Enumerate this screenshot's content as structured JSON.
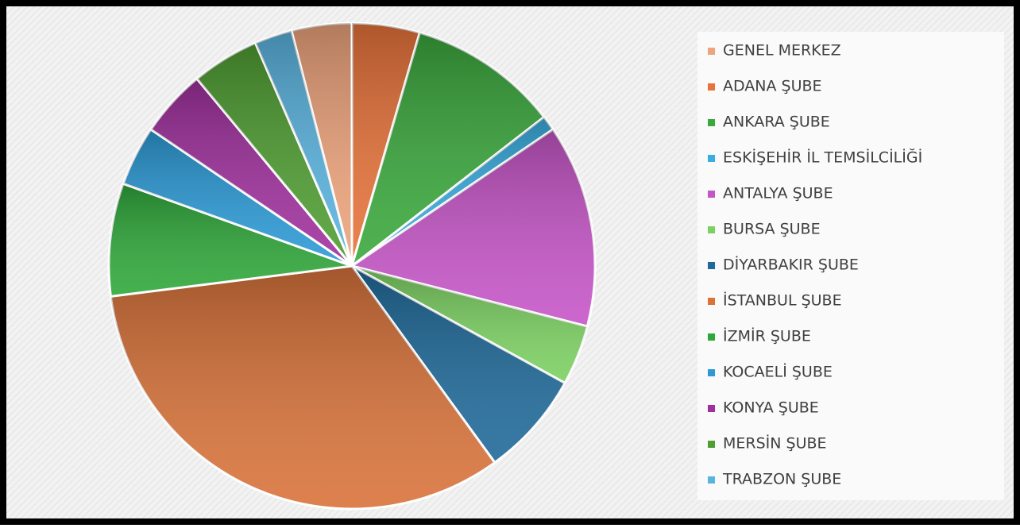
{
  "chart_data": {
    "type": "pie",
    "start_angle": -14.4,
    "categories": [
      "GENEL MERKEZ",
      "ADANA ŞUBE",
      "ANKARA ŞUBE",
      "ESKİŞEHİR İL TEMSİLCİLİĞİ",
      "ANTALYA ŞUBE",
      "BURSA ŞUBE",
      "DİYARBAKIR ŞUBE",
      "İSTANBUL ŞUBE",
      "İZMİR ŞUBE",
      "KOCAELİ ŞUBE",
      "KONYA ŞUBE",
      "MERSİN ŞUBE",
      "TRABZON ŞUBE"
    ],
    "values": [
      4,
      4.5,
      10,
      1,
      13.5,
      4,
      7,
      33,
      7.5,
      4,
      4.5,
      4.5,
      2.5
    ],
    "colors": [
      "#eea47c",
      "#e8733a",
      "#3aa83c",
      "#3aaee0",
      "#c655c8",
      "#7cd162",
      "#1f6a9a",
      "#d9733a",
      "#2fa83a",
      "#2b9ad6",
      "#a0309e",
      "#4f9e32",
      "#5ab4e0"
    ],
    "legend": "right"
  }
}
